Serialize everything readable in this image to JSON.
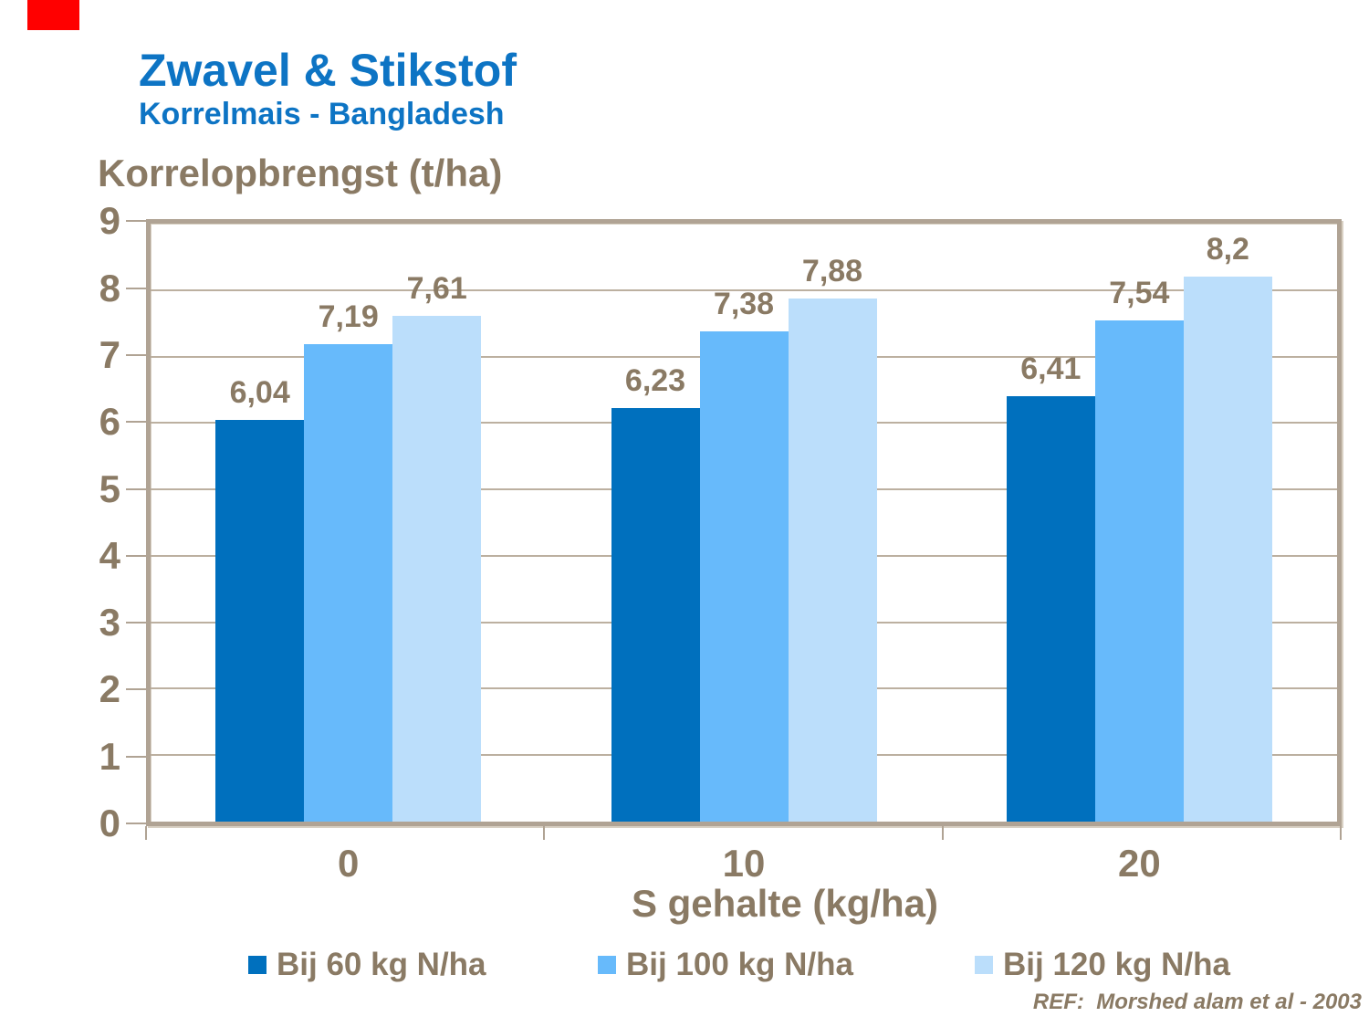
{
  "page": {
    "background": "#FFFFFF",
    "red_marker_color": "#FF0000"
  },
  "header": {
    "title": "Zwavel & Stikstof",
    "subtitle": "Korrelmais - Bangladesh",
    "title_color": "#0D74C4"
  },
  "footer": {
    "ref": "REF:  Morshed alam et al - 2003"
  },
  "colors": {
    "text_brown": "#8A7A64",
    "frame": "#B0A394",
    "gridline": "#BCB0A0"
  },
  "chart_data": {
    "type": "bar",
    "title": "Zwavel & Stikstof — Korrelmais - Bangladesh",
    "ylabel": "Korrelopbrengst (t/ha)",
    "xlabel": "S gehalte (kg/ha)",
    "ylim": [
      0,
      9
    ],
    "yticks": [
      0,
      1,
      2,
      3,
      4,
      5,
      6,
      7,
      8,
      9
    ],
    "grid": true,
    "legend_position": "bottom",
    "categories": [
      "0",
      "10",
      "20"
    ],
    "series": [
      {
        "name": "Bij 60 kg N/ha",
        "color": "#0070BE",
        "values": [
          6.04,
          6.23,
          6.41
        ],
        "labels": [
          "6,04",
          "6,23",
          "6,41"
        ]
      },
      {
        "name": "Bij 100 kg N/ha",
        "color": "#67BAFB",
        "values": [
          7.19,
          7.38,
          7.54
        ],
        "labels": [
          "7,19",
          "7,38",
          "7,54"
        ]
      },
      {
        "name": "Bij 120 kg N/ha",
        "color": "#BBDEFB",
        "values": [
          7.61,
          7.88,
          8.2
        ],
        "labels": [
          "7,61",
          "7,88",
          "8,2"
        ]
      }
    ]
  }
}
